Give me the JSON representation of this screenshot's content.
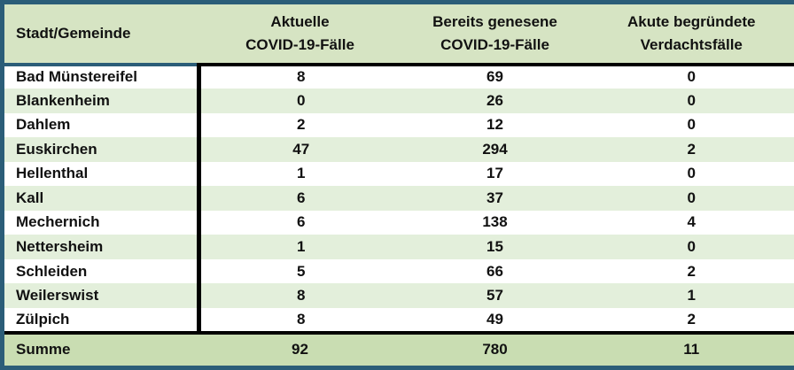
{
  "colors": {
    "frame": "#2B5D78",
    "header_bg": "#D6E4C3",
    "stripe_bg": "#E3EFDB",
    "footer_bg": "#C9DDB2",
    "line_black": "#000000",
    "text": "#111111"
  },
  "header": {
    "col_city": "Stadt/Gemeinde",
    "col_active_line1": "Aktuelle",
    "col_active_line2": "COVID-19-Fälle",
    "col_recovered_line1": "Bereits genesene",
    "col_recovered_line2": "COVID-19-Fälle",
    "col_suspected_line1": "Akute begründete",
    "col_suspected_line2": "Verdachtsfälle"
  },
  "rows": [
    {
      "name": "Bad Münstereifel",
      "active": "8",
      "recovered": "69",
      "suspected": "0"
    },
    {
      "name": "Blankenheim",
      "active": "0",
      "recovered": "26",
      "suspected": "0"
    },
    {
      "name": "Dahlem",
      "active": "2",
      "recovered": "12",
      "suspected": "0"
    },
    {
      "name": "Euskirchen",
      "active": "47",
      "recovered": "294",
      "suspected": "2"
    },
    {
      "name": "Hellenthal",
      "active": "1",
      "recovered": "17",
      "suspected": "0"
    },
    {
      "name": "Kall",
      "active": "6",
      "recovered": "37",
      "suspected": "0"
    },
    {
      "name": "Mechernich",
      "active": "6",
      "recovered": "138",
      "suspected": "4"
    },
    {
      "name": "Nettersheim",
      "active": "1",
      "recovered": "15",
      "suspected": "0"
    },
    {
      "name": "Schleiden",
      "active": "5",
      "recovered": "66",
      "suspected": "2"
    },
    {
      "name": "Weilerswist",
      "active": "8",
      "recovered": "57",
      "suspected": "1"
    },
    {
      "name": "Zülpich",
      "active": "8",
      "recovered": "49",
      "suspected": "2"
    }
  ],
  "footer": {
    "label": "Summe",
    "active": "92",
    "recovered": "780",
    "suspected": "11"
  }
}
